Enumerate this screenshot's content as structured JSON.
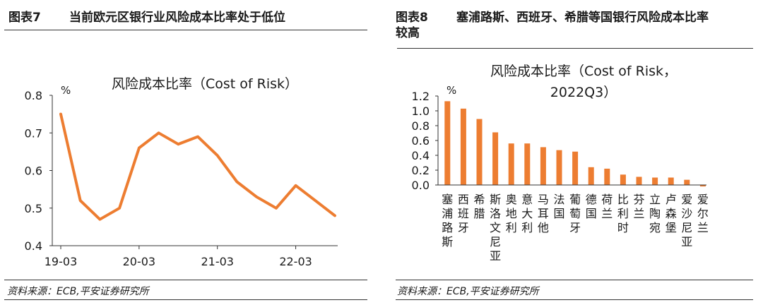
{
  "left_panel": {
    "figure_number": "图表7",
    "figure_title": "当前欧元区银行业风险成本比率处于低位",
    "source": "资料来源：ECB,平安证券研究所"
  },
  "right_panel": {
    "figure_number": "图表8",
    "figure_title_line1": "塞浦路斯、西班牙、希腊等国银行风险成本比率",
    "figure_title_line2": "较高",
    "source": "资料来源：ECB,平安证券研究所"
  },
  "chart_data": [
    {
      "type": "line",
      "title": "风险成本比率（Cost of Risk）",
      "ylabel": "%",
      "xlabel": "",
      "ylim": [
        0.4,
        0.8
      ],
      "yticks": [
        "0.8",
        "0.7",
        "0.6",
        "0.5",
        "0.4"
      ],
      "xticks": [
        "19-03",
        "20-03",
        "21-03",
        "22-03"
      ],
      "x": [
        "19-03",
        "19-06",
        "19-09",
        "19-12",
        "20-03",
        "20-06",
        "20-09",
        "20-12",
        "21-03",
        "21-06",
        "21-09",
        "21-12",
        "22-03",
        "22-06",
        "22-09"
      ],
      "values": [
        0.75,
        0.52,
        0.47,
        0.5,
        0.66,
        0.7,
        0.67,
        0.69,
        0.64,
        0.57,
        0.53,
        0.5,
        0.56,
        0.52,
        0.48
      ],
      "color": "#ED7D31",
      "grid": false
    },
    {
      "type": "bar",
      "title_line1": "风险成本比率（Cost of Risk，",
      "title_line2": "2022Q3）",
      "ylabel": "%",
      "xlabel": "",
      "ylim": [
        0.0,
        1.2
      ],
      "yticks": [
        "1.2",
        "1.0",
        "0.8",
        "0.6",
        "0.4",
        "0.2",
        "0.0"
      ],
      "categories": [
        "塞浦路斯",
        "西班牙",
        "希腊",
        "斯洛文尼亚",
        "奥地利",
        "意大利",
        "马耳他",
        "法国",
        "葡萄牙",
        "德国",
        "荷兰",
        "比利时",
        "芬兰",
        "立陶宛",
        "卢森堡",
        "爱沙尼亚",
        "爱尔兰"
      ],
      "values": [
        1.13,
        1.03,
        0.89,
        0.71,
        0.56,
        0.56,
        0.51,
        0.47,
        0.45,
        0.24,
        0.22,
        0.14,
        0.11,
        0.1,
        0.1,
        0.07,
        -0.02
      ],
      "color": "#ED7D31",
      "grid": false
    }
  ]
}
